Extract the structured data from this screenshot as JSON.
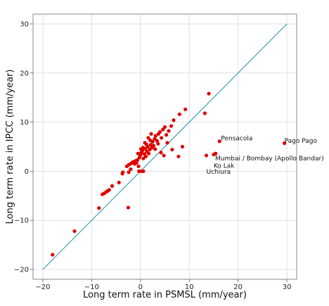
{
  "chart_data": {
    "type": "scatter",
    "xlabel": "Long term rate in PSMSL (mm/year)",
    "ylabel": "Long term rate in IPCC (mm/year)",
    "xlim": [
      -22,
      32
    ],
    "ylim": [
      -22,
      32
    ],
    "xticks": [
      -20,
      -10,
      0,
      10,
      20,
      30
    ],
    "yticks": [
      -20,
      -10,
      0,
      10,
      20,
      30
    ],
    "grid": true,
    "colors": {
      "points": "#e00000",
      "reference_line": "#1f8fa0",
      "grid": "#d8d8d8",
      "frame": "#888888"
    },
    "reference_line": {
      "x": [
        -20,
        30
      ],
      "y": [
        -20,
        30
      ]
    },
    "points": [
      {
        "x": -18.0,
        "y": -17.0
      },
      {
        "x": -13.5,
        "y": -12.2
      },
      {
        "x": -8.5,
        "y": -7.5
      },
      {
        "x": -2.5,
        "y": -7.4
      },
      {
        "x": -7.8,
        "y": -4.7
      },
      {
        "x": -7.4,
        "y": -4.5
      },
      {
        "x": -7.0,
        "y": -4.2
      },
      {
        "x": -6.7,
        "y": -4.0
      },
      {
        "x": -6.4,
        "y": -3.8
      },
      {
        "x": -5.8,
        "y": -3.0
      },
      {
        "x": -4.4,
        "y": -2.3
      },
      {
        "x": -3.7,
        "y": -0.5
      },
      {
        "x": -3.6,
        "y": -0.2
      },
      {
        "x": -2.4,
        "y": -0.2
      },
      {
        "x": -2.0,
        "y": 0.4
      },
      {
        "x": -2.8,
        "y": 1.0
      },
      {
        "x": -2.4,
        "y": 1.3
      },
      {
        "x": -1.9,
        "y": 1.6
      },
      {
        "x": -1.5,
        "y": 1.9
      },
      {
        "x": -1.2,
        "y": 1.5
      },
      {
        "x": -1.0,
        "y": 2.1
      },
      {
        "x": -0.8,
        "y": 1.7
      },
      {
        "x": -0.6,
        "y": 2.3
      },
      {
        "x": -0.4,
        "y": 1.0
      },
      {
        "x": -0.3,
        "y": 0.0
      },
      {
        "x": 0.2,
        "y": 0.0
      },
      {
        "x": 0.6,
        "y": 0.0
      },
      {
        "x": -0.2,
        "y": 2.8
      },
      {
        "x": 0.0,
        "y": 3.3
      },
      {
        "x": 0.2,
        "y": 3.8
      },
      {
        "x": 0.4,
        "y": 4.2
      },
      {
        "x": 0.6,
        "y": 2.6
      },
      {
        "x": 0.8,
        "y": 3.5
      },
      {
        "x": 1.0,
        "y": 4.6
      },
      {
        "x": 1.1,
        "y": 3.0
      },
      {
        "x": 1.3,
        "y": 4.0
      },
      {
        "x": 1.5,
        "y": 5.0
      },
      {
        "x": 1.7,
        "y": 3.6
      },
      {
        "x": 1.9,
        "y": 4.4
      },
      {
        "x": 2.1,
        "y": 5.4
      },
      {
        "x": 2.3,
        "y": 4.8
      },
      {
        "x": 2.5,
        "y": 6.0
      },
      {
        "x": 2.7,
        "y": 5.2
      },
      {
        "x": 2.9,
        "y": 6.6
      },
      {
        "x": 3.1,
        "y": 7.2
      },
      {
        "x": 3.4,
        "y": 6.2
      },
      {
        "x": 3.7,
        "y": 7.6
      },
      {
        "x": 4.0,
        "y": 8.0
      },
      {
        "x": 4.3,
        "y": 6.8
      },
      {
        "x": 4.6,
        "y": 8.5
      },
      {
        "x": 5.0,
        "y": 9.0
      },
      {
        "x": 5.3,
        "y": 7.4
      },
      {
        "x": 5.8,
        "y": 8.2
      },
      {
        "x": 6.3,
        "y": 9.2
      },
      {
        "x": 6.8,
        "y": 10.4
      },
      {
        "x": 8.0,
        "y": 11.6
      },
      {
        "x": 9.2,
        "y": 12.6
      },
      {
        "x": 14.0,
        "y": 15.8
      },
      {
        "x": 13.2,
        "y": 11.8
      },
      {
        "x": 0.5,
        "y": 4.8
      },
      {
        "x": 1.2,
        "y": 5.5
      },
      {
        "x": 2.0,
        "y": 6.3
      },
      {
        "x": 3.0,
        "y": 4.5
      },
      {
        "x": 3.6,
        "y": 5.6
      },
      {
        "x": 4.2,
        "y": 3.8
      },
      {
        "x": 4.8,
        "y": 3.2
      },
      {
        "x": 5.5,
        "y": 5.8
      },
      {
        "x": 6.5,
        "y": 4.4
      },
      {
        "x": 7.8,
        "y": 3.0
      },
      {
        "x": 8.6,
        "y": 5.0
      },
      {
        "x": 1.6,
        "y": 6.8
      },
      {
        "x": 2.2,
        "y": 7.6
      },
      {
        "x": 0.9,
        "y": 5.8
      },
      {
        "x": -0.5,
        "y": 3.6
      },
      {
        "x": 0.1,
        "y": 4.5
      },
      {
        "x": 16.2,
        "y": 6.1
      },
      {
        "x": 29.5,
        "y": 5.7
      },
      {
        "x": 15.4,
        "y": 3.6
      },
      {
        "x": 15.0,
        "y": 3.4
      },
      {
        "x": 13.5,
        "y": 3.2
      }
    ],
    "annotations": [
      {
        "text": "Pensacola",
        "x": 16.5,
        "y": 6.3
      },
      {
        "text": "Pago Pago",
        "x": 29.5,
        "y": 5.8
      },
      {
        "text": "Mumbai / Bombay (Apollo Bandar)",
        "x": 15.3,
        "y": 2.2
      },
      {
        "text": "Ko Lak",
        "x": 15.0,
        "y": 0.7
      },
      {
        "text": "Uchiura",
        "x": 13.5,
        "y": -0.5
      }
    ]
  }
}
